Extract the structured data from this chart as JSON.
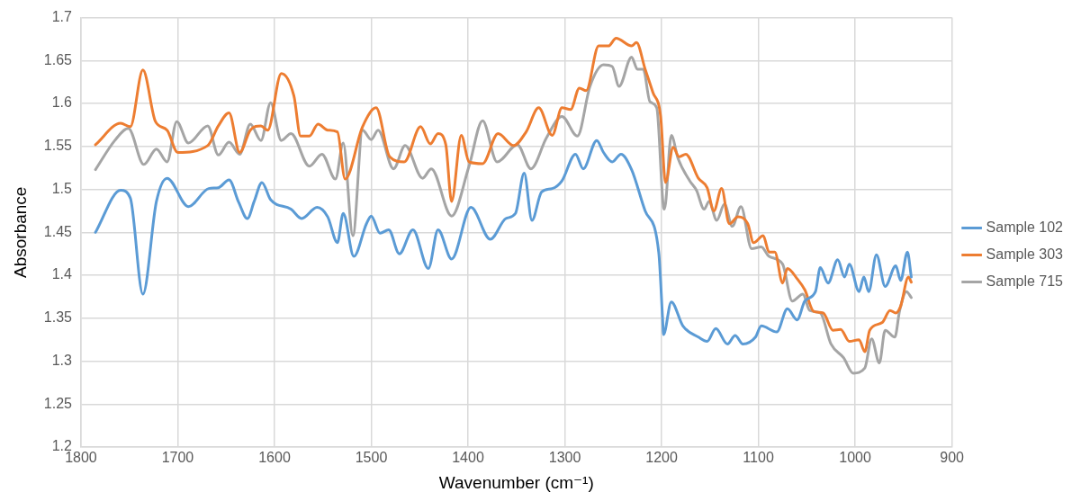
{
  "chart_data": {
    "type": "line",
    "xlabel": "Wavenumber (cm⁻¹)",
    "ylabel": "Absorbance",
    "xlim": [
      1800,
      900
    ],
    "xticks": [
      1800,
      1700,
      1600,
      1500,
      1400,
      1300,
      1200,
      1100,
      1000,
      900
    ],
    "ylim": [
      1.2,
      1.7
    ],
    "yticks": [
      1.2,
      1.25,
      1.3,
      1.35,
      1.4,
      1.45,
      1.5,
      1.55,
      1.6,
      1.65,
      1.7
    ],
    "grid": true,
    "legend": "right",
    "marker": "none",
    "line_style": "solid",
    "series": [
      {
        "name": "Sample 102",
        "color": "#5b9bd5",
        "x": [
          1785,
          1759,
          1749,
          1736,
          1722,
          1711,
          1689,
          1668,
          1658,
          1647,
          1637,
          1628,
          1621,
          1613,
          1604,
          1583,
          1572,
          1556,
          1545,
          1535,
          1529,
          1518,
          1505,
          1500,
          1491,
          1482,
          1471,
          1457,
          1441,
          1431,
          1417,
          1397,
          1377,
          1361,
          1351,
          1342,
          1334,
          1324,
          1313,
          1303,
          1289,
          1281,
          1267,
          1260,
          1251,
          1242,
          1231,
          1217,
          1203,
          1199,
          1198,
          1190,
          1178,
          1162,
          1153,
          1144,
          1132,
          1124,
          1116,
          1103,
          1097,
          1081,
          1070,
          1060,
          1052,
          1041,
          1036,
          1028,
          1018,
          1011,
          1006,
          996,
          991,
          986,
          978,
          969,
          958,
          953,
          946,
          942
        ],
        "values": [
          1.45,
          1.499,
          1.49,
          1.378,
          1.486,
          1.513,
          1.48,
          1.501,
          1.502,
          1.511,
          1.485,
          1.466,
          1.486,
          1.508,
          1.488,
          1.477,
          1.466,
          1.479,
          1.468,
          1.438,
          1.472,
          1.422,
          1.46,
          1.469,
          1.449,
          1.453,
          1.425,
          1.453,
          1.408,
          1.453,
          1.419,
          1.479,
          1.442,
          1.466,
          1.472,
          1.519,
          1.464,
          1.497,
          1.501,
          1.51,
          1.541,
          1.524,
          1.557,
          1.543,
          1.532,
          1.541,
          1.523,
          1.475,
          1.427,
          1.35,
          1.331,
          1.369,
          1.341,
          1.328,
          1.323,
          1.338,
          1.32,
          1.33,
          1.32,
          1.328,
          1.341,
          1.334,
          1.361,
          1.348,
          1.37,
          1.381,
          1.409,
          1.391,
          1.418,
          1.398,
          1.413,
          1.381,
          1.398,
          1.381,
          1.424,
          1.387,
          1.411,
          1.394,
          1.427,
          1.398
        ]
      },
      {
        "name": "Sample 303",
        "color": "#ed7d31",
        "x": [
          1785,
          1759,
          1749,
          1736,
          1723,
          1711,
          1700,
          1669,
          1658,
          1647,
          1636,
          1625,
          1614,
          1607,
          1593,
          1580,
          1573,
          1564,
          1555,
          1545,
          1535,
          1527,
          1509,
          1495,
          1481,
          1466,
          1449,
          1439,
          1431,
          1423,
          1417,
          1407,
          1399,
          1385,
          1369,
          1353,
          1340,
          1327,
          1313,
          1303,
          1294,
          1285,
          1278,
          1265,
          1255,
          1247,
          1231,
          1226,
          1217,
          1209,
          1201,
          1196,
          1188,
          1182,
          1175,
          1162,
          1153,
          1146,
          1138,
          1130,
          1121,
          1111,
          1105,
          1095,
          1089,
          1083,
          1075,
          1070,
          1060,
          1052,
          1043,
          1033,
          1023,
          1015,
          1006,
          996,
          990,
          985,
          972,
          964,
          958,
          953,
          945,
          942
        ],
        "values": [
          1.552,
          1.577,
          1.573,
          1.639,
          1.579,
          1.569,
          1.543,
          1.551,
          1.574,
          1.589,
          1.543,
          1.569,
          1.574,
          1.569,
          1.635,
          1.609,
          1.562,
          1.562,
          1.576,
          1.569,
          1.567,
          1.512,
          1.573,
          1.595,
          1.538,
          1.532,
          1.573,
          1.553,
          1.565,
          1.552,
          1.486,
          1.563,
          1.532,
          1.53,
          1.565,
          1.551,
          1.567,
          1.595,
          1.563,
          1.595,
          1.593,
          1.618,
          1.615,
          1.667,
          1.667,
          1.676,
          1.667,
          1.671,
          1.64,
          1.613,
          1.585,
          1.508,
          1.549,
          1.538,
          1.541,
          1.513,
          1.502,
          1.475,
          1.501,
          1.46,
          1.468,
          1.46,
          1.438,
          1.446,
          1.427,
          1.427,
          1.391,
          1.408,
          1.396,
          1.383,
          1.358,
          1.356,
          1.336,
          1.337,
          1.323,
          1.325,
          1.311,
          1.336,
          1.345,
          1.359,
          1.356,
          1.364,
          1.398,
          1.392
        ]
      },
      {
        "name": "Sample 715",
        "color": "#a5a5a5",
        "x": [
          1785,
          1765,
          1751,
          1735,
          1722,
          1711,
          1701,
          1689,
          1669,
          1658,
          1647,
          1636,
          1625,
          1614,
          1604,
          1593,
          1583,
          1564,
          1551,
          1537,
          1529,
          1519,
          1509,
          1500,
          1493,
          1477,
          1465,
          1447,
          1438,
          1417,
          1399,
          1385,
          1370,
          1349,
          1335,
          1319,
          1303,
          1287,
          1274,
          1260,
          1251,
          1244,
          1231,
          1225,
          1219,
          1212,
          1205,
          1198,
          1197,
          1190,
          1183,
          1171,
          1164,
          1156,
          1151,
          1143,
          1135,
          1127,
          1118,
          1107,
          1097,
          1089,
          1075,
          1065,
          1054,
          1047,
          1036,
          1025,
          1012,
          1002,
          990,
          983,
          975,
          969,
          959,
          954,
          947,
          942
        ],
        "values": [
          1.523,
          1.557,
          1.571,
          1.529,
          1.547,
          1.532,
          1.579,
          1.554,
          1.574,
          1.54,
          1.555,
          1.541,
          1.576,
          1.557,
          1.601,
          1.557,
          1.565,
          1.527,
          1.541,
          1.512,
          1.554,
          1.446,
          1.569,
          1.558,
          1.569,
          1.524,
          1.551,
          1.513,
          1.524,
          1.469,
          1.527,
          1.58,
          1.532,
          1.552,
          1.524,
          1.56,
          1.585,
          1.562,
          1.62,
          1.645,
          1.643,
          1.62,
          1.654,
          1.64,
          1.64,
          1.602,
          1.595,
          1.479,
          1.477,
          1.563,
          1.536,
          1.51,
          1.499,
          1.477,
          1.486,
          1.464,
          1.483,
          1.457,
          1.48,
          1.431,
          1.433,
          1.422,
          1.413,
          1.37,
          1.378,
          1.359,
          1.356,
          1.32,
          1.304,
          1.286,
          1.292,
          1.326,
          1.298,
          1.336,
          1.328,
          1.359,
          1.381,
          1.374
        ]
      }
    ]
  }
}
